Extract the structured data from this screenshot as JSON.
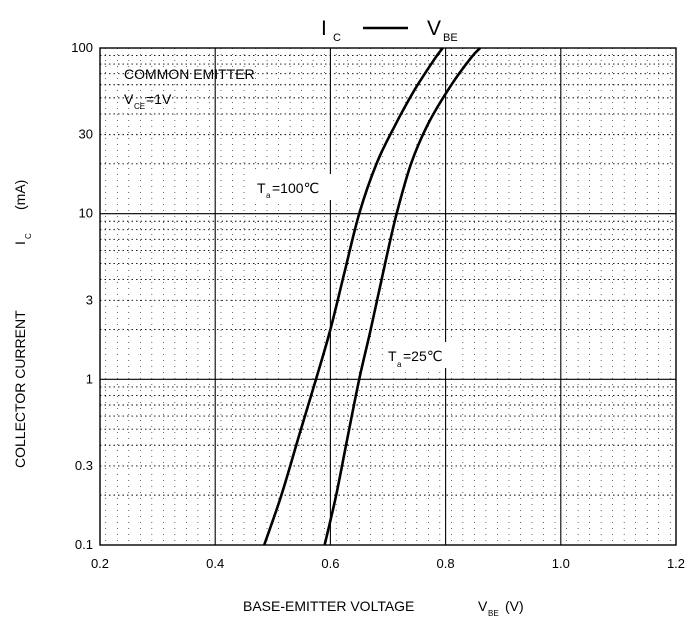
{
  "chart_data": {
    "type": "line",
    "title": {
      "main": "I",
      "main_sub": "C",
      "dash": "—",
      "second": "V",
      "second_sub": "BE"
    },
    "xlabel": {
      "text": "BASE-EMITTER VOLTAGE",
      "symbol": "V",
      "symbol_sub": "BE",
      "unit": "(V)"
    },
    "ylabel": {
      "text": "COLLECTOR CURRENT",
      "symbol": "I",
      "symbol_sub": "C",
      "unit": "(mA)"
    },
    "xlim": [
      0.2,
      1.2
    ],
    "ylim": [
      0.1,
      100
    ],
    "yscale": "log",
    "grid": true,
    "x_ticks": [
      "0.2",
      "0.4",
      "0.6",
      "0.8",
      "1.0",
      "1.2"
    ],
    "y_ticks": [
      "0.1",
      "0.3",
      "1",
      "3",
      "10",
      "30",
      "100"
    ],
    "condition": {
      "line1": "COMMON EMITTER",
      "line2_symbol": "V",
      "line2_sub": "CE",
      "line2_value": "=1V"
    },
    "series": [
      {
        "name": "Ta=100℃",
        "label": {
          "symbol": "T",
          "sub": "a",
          "value": "=100℃"
        },
        "x": [
          0.485,
          0.515,
          0.545,
          0.575,
          0.6,
          0.625,
          0.65,
          0.68,
          0.71,
          0.745,
          0.78,
          0.795
        ],
        "y": [
          0.1,
          0.2,
          0.45,
          1.0,
          2.0,
          4.5,
          10,
          20,
          33,
          55,
          85,
          100
        ]
      },
      {
        "name": "Ta=25℃",
        "label": {
          "symbol": "T",
          "sub": "a",
          "value": "=25℃"
        },
        "x": [
          0.59,
          0.61,
          0.63,
          0.65,
          0.67,
          0.695,
          0.715,
          0.74,
          0.77,
          0.81,
          0.845,
          0.86
        ],
        "y": [
          0.1,
          0.2,
          0.45,
          1.0,
          2.0,
          5.0,
          10,
          20,
          35,
          60,
          88,
          100
        ]
      }
    ]
  }
}
